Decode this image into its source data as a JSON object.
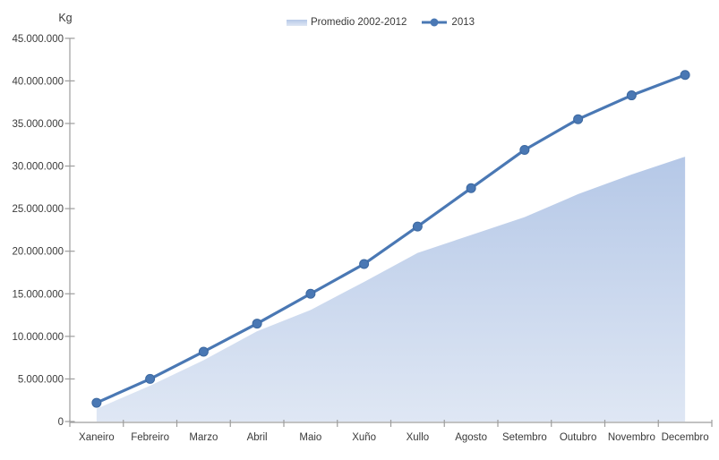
{
  "chart_data": {
    "type": "combo-area-line",
    "title": "",
    "ylabel": "Kg",
    "xlabel": "",
    "categories": [
      "Xaneiro",
      "Febreiro",
      "Marzo",
      "Abril",
      "Maio",
      "Xuño",
      "Xullo",
      "Agosto",
      "Setembro",
      "Outubro",
      "Novembro",
      "Decembro"
    ],
    "series": [
      {
        "name": "Promedio 2002-2012",
        "type": "area",
        "values": [
          1500000,
          4200000,
          7200000,
          10600000,
          13100000,
          16400000,
          19800000,
          21900000,
          24000000,
          26700000,
          29000000,
          31100000
        ],
        "fill_top": "#b5c8e7",
        "fill_bottom": "#dfe7f4"
      },
      {
        "name": "2013",
        "type": "line",
        "values": [
          2200000,
          5000000,
          8200000,
          11500000,
          15000000,
          18500000,
          22900000,
          27400000,
          31900000,
          35500000,
          38300000,
          40700000
        ],
        "color": "#4a78b4",
        "marker": "circle",
        "marker_edge_color": "#3c68a0"
      }
    ],
    "ylim": [
      0,
      45000000
    ],
    "ytick_step": 5000000,
    "ytick_labels": [
      "0",
      "5.000.000",
      "10.000.000",
      "15.000.000",
      "20.000.000",
      "25.000.000",
      "30.000.000",
      "35.000.000",
      "40.000.000",
      "45.000.000"
    ],
    "grid": false,
    "legend_position": "top-center"
  },
  "colors": {
    "axis_line": "#9d9d9d",
    "tick_label": "#3a3a3a",
    "background": "#ffffff"
  }
}
